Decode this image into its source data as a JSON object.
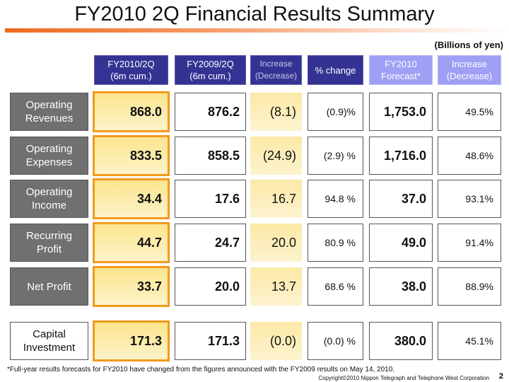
{
  "title": "FY2010 2Q Financial Results Summary",
  "unit": "(Billions of yen)",
  "headers": [
    {
      "l1": "FY2010/2Q",
      "l2": "(6m cum.)"
    },
    {
      "l1": "FY2009/2Q",
      "l2": "(6m cum.)"
    },
    {
      "l1": "Increase",
      "l2": "(Decrease)"
    },
    {
      "l1": "% change",
      "l2": ""
    },
    {
      "l1": "FY2010",
      "l2": "Forecast*"
    },
    {
      "l1": "Increase",
      "l2": "(Decrease)"
    }
  ],
  "rows": [
    {
      "l1": "Operating",
      "l2": "Revenues",
      "v": [
        "868.0",
        "876.2",
        "(8.1)",
        "(0.9)%",
        "1,753.0",
        "49.5%"
      ]
    },
    {
      "l1": "Operating",
      "l2": "Expenses",
      "v": [
        "833.5",
        "858.5",
        "(24.9)",
        "(2.9) %",
        "1,716.0",
        "48.6%"
      ]
    },
    {
      "l1": "Operating",
      "l2": "Income",
      "v": [
        "34.4",
        "17.6",
        "16.7",
        "94.8 %",
        "37.0",
        "93.1%"
      ]
    },
    {
      "l1": "Recurring",
      "l2": "Profit",
      "v": [
        "44.7",
        "24.7",
        "20.0",
        "80.9 %",
        "49.0",
        "91.4%"
      ]
    },
    {
      "l1": "Net Profit",
      "l2": "",
      "v": [
        "33.7",
        "20.0",
        "13.7",
        "68.6 %",
        "38.0",
        "88.9%"
      ]
    },
    {
      "l1": "Capital",
      "l2": "Investment",
      "v": [
        "171.3",
        "171.3",
        "(0.0)",
        "(0.0) %",
        "380.0",
        "45.1%"
      ]
    }
  ],
  "footnote": "*Full-year results forecasts for FY2010 have changed from the figures announced with the FY2009 results on May 14, 2010.",
  "copyright": "Copyright©2010 Nippon Telegraph and Telephone West Corporation",
  "page": "2",
  "colors": {
    "header_dark": "#343393",
    "header_light": "#9f9ff5",
    "highlight_border": "#f39a1c",
    "highlight_fill": "#fbe58e",
    "label_gray": "#707070"
  }
}
